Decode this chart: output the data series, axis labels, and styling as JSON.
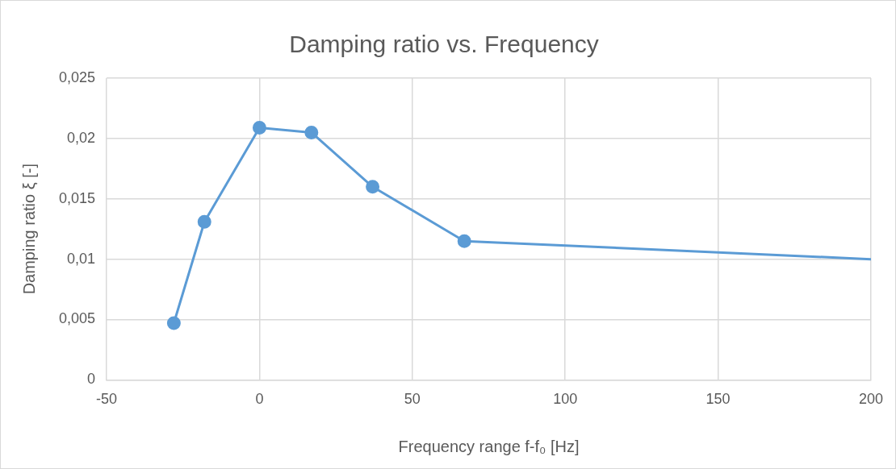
{
  "chart_data": {
    "type": "line",
    "title": "Damping ratio vs. Frequency",
    "xlabel": "Frequency range f-f₀ [Hz]",
    "ylabel": "Damping ratio ξ [-]",
    "x": [
      -28,
      -18,
      0,
      17,
      37,
      67,
      200
    ],
    "series": [
      {
        "color": "#5b9bd5",
        "values": [
          0.0047,
          0.0131,
          0.0209,
          0.0205,
          0.016,
          0.0115,
          0.01
        ]
      }
    ],
    "xlim": [
      -50,
      200
    ],
    "xticks": [
      -50,
      0,
      50,
      100,
      150,
      200
    ],
    "ylim": [
      0,
      0.025
    ],
    "yticks": [
      0,
      {
        "value": 0.005,
        "label": "0,005"
      },
      {
        "value": 0.01,
        "label": "0,01"
      },
      {
        "value": 0.015,
        "label": "0,015"
      },
      {
        "value": 0.02,
        "label": "0,02"
      },
      {
        "value": 0.025,
        "label": "0,025"
      }
    ],
    "grid": true,
    "legend": false,
    "marker": "circle",
    "line_style": "solid"
  }
}
